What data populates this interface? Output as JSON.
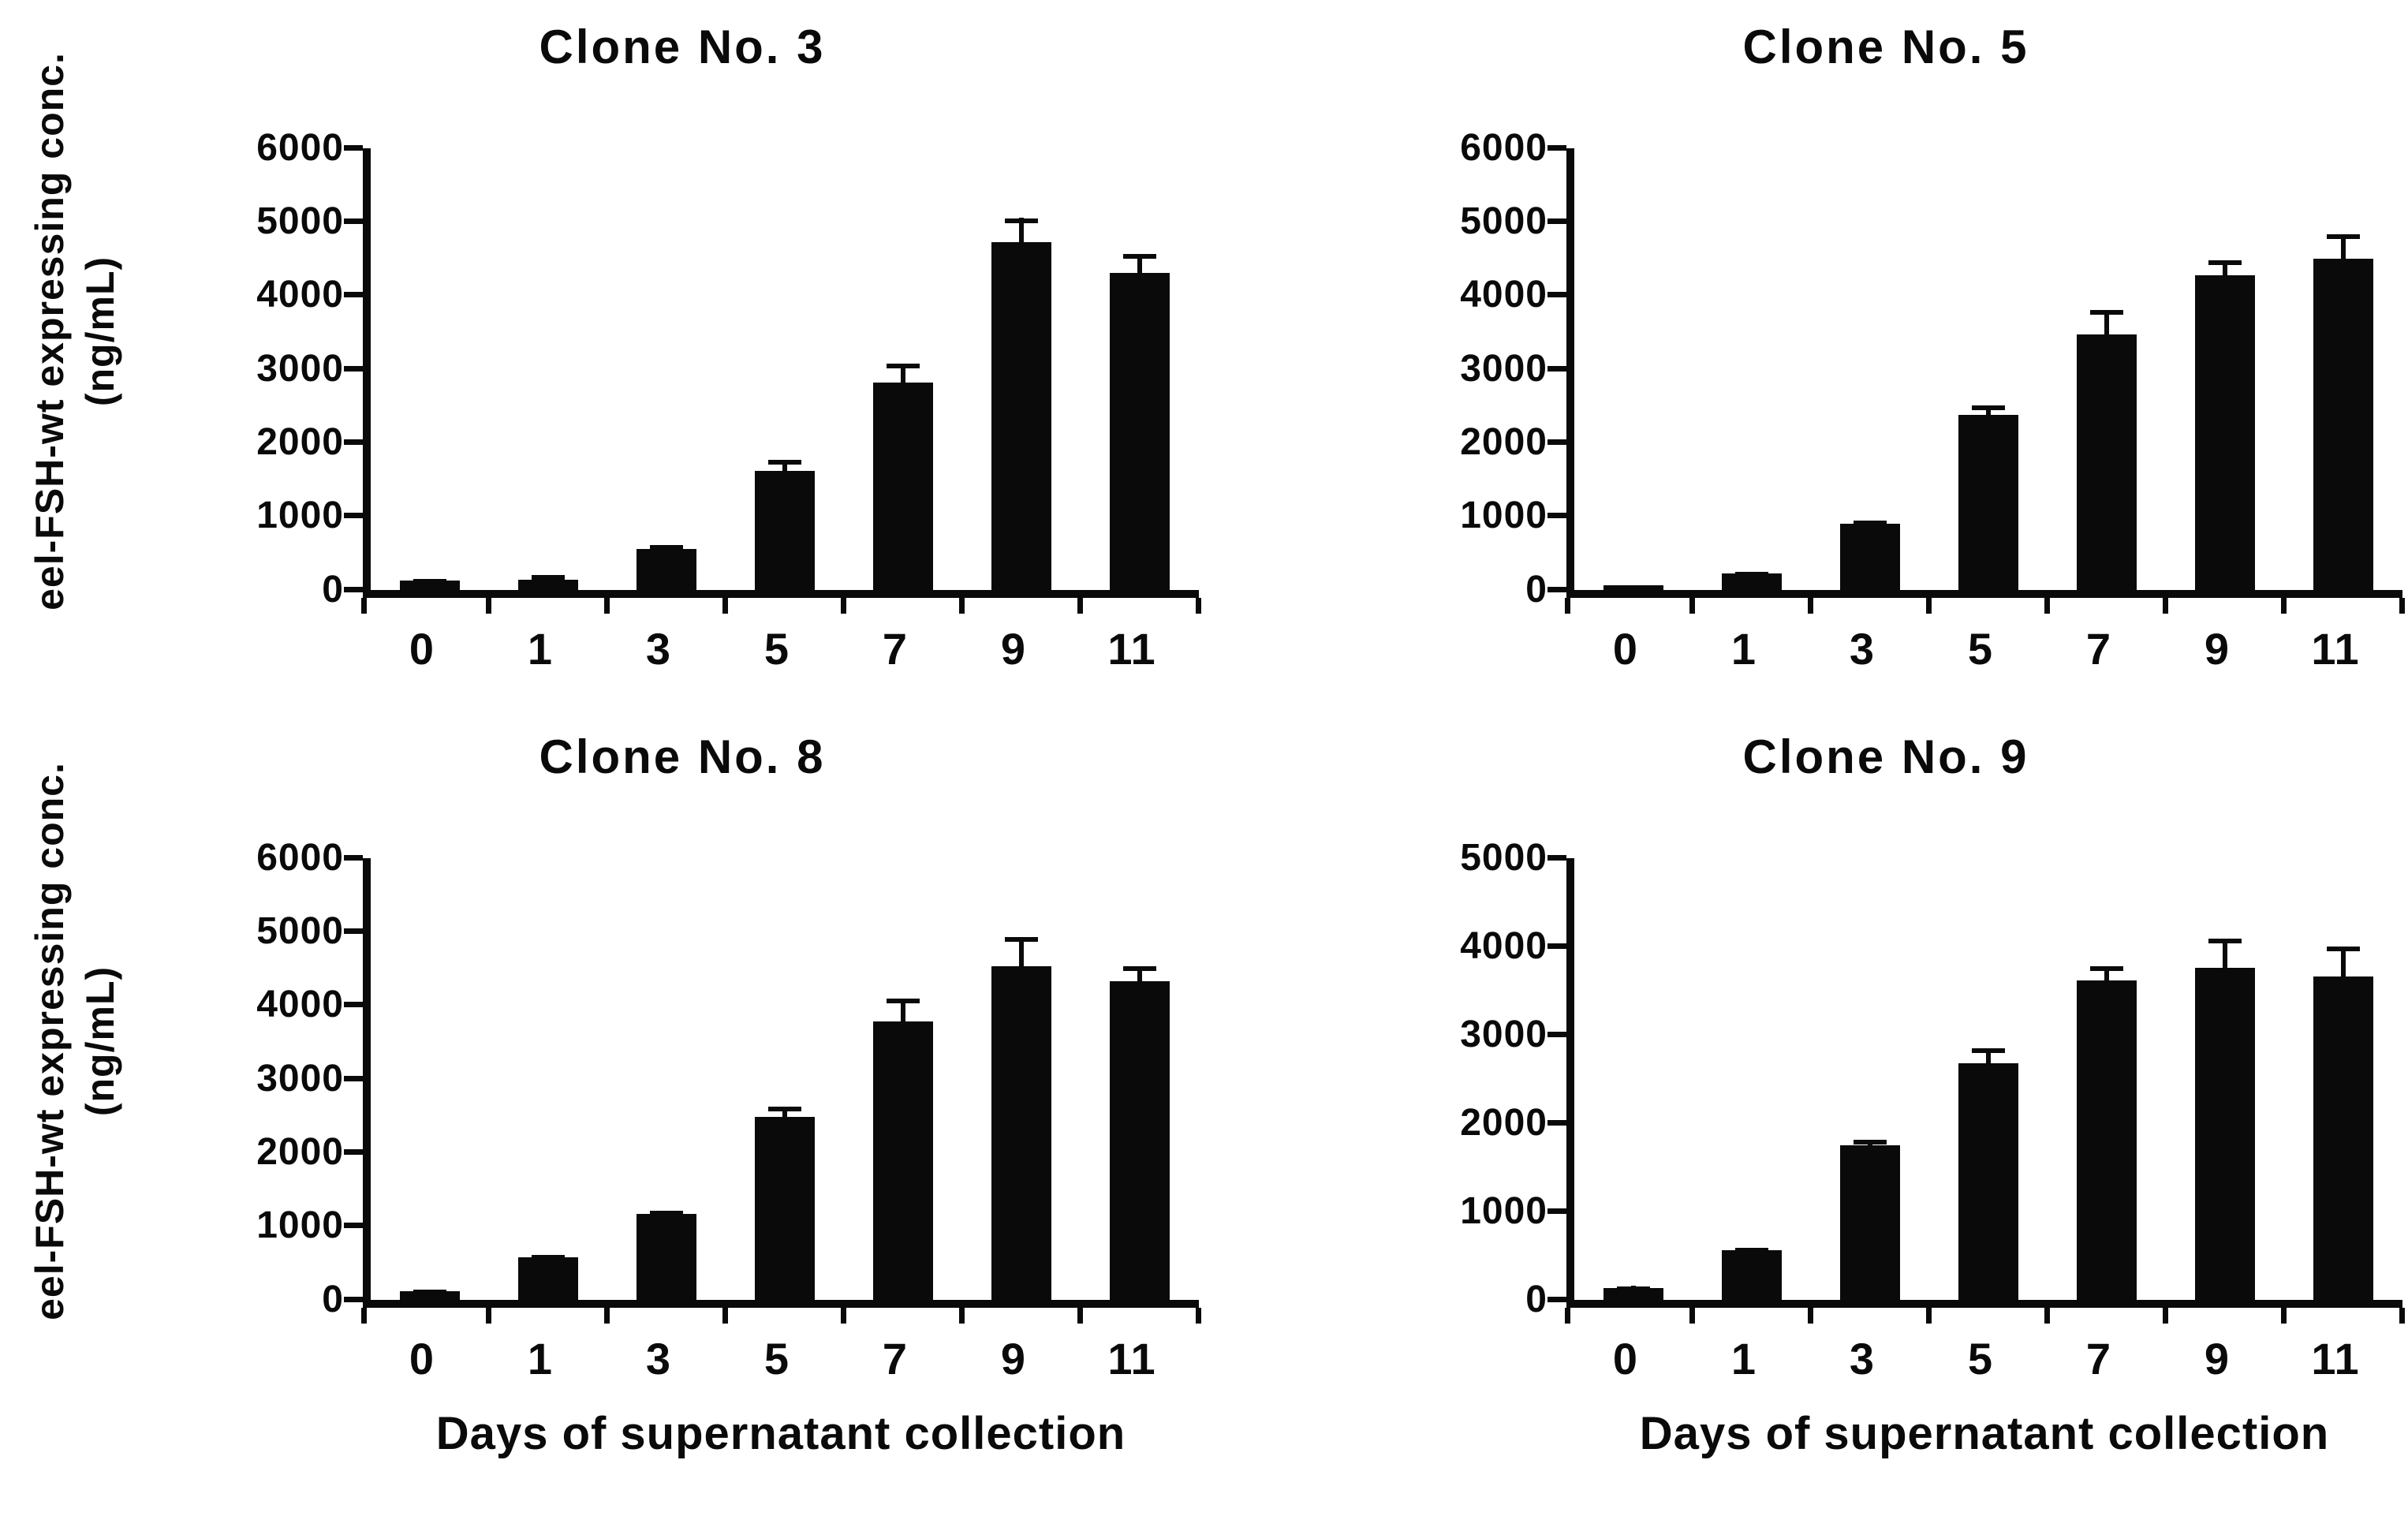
{
  "figure": {
    "background": "#ffffff",
    "ink_color": "#0a0a0a",
    "bar_color": "#0a0a0a",
    "y_axis_label_line1": "eel-FSH-wt expressing conc.",
    "y_axis_label_line2": "(ng/mL)",
    "x_axis_label": "Days of supernatant collection"
  },
  "chart_data": [
    {
      "type": "bar",
      "title": "Clone No. 3",
      "xlabel": "",
      "ylabel": "eel-FSH-wt expressing conc. (ng/mL)",
      "categories": [
        "0",
        "1",
        "3",
        "5",
        "7",
        "9",
        "11"
      ],
      "values": [
        130,
        140,
        560,
        1620,
        2820,
        4720,
        4310
      ],
      "errors": [
        15,
        60,
        50,
        150,
        260,
        330,
        250
      ],
      "ylim": [
        0,
        6000
      ],
      "yticks": [
        "0",
        "1000",
        "2000",
        "3000",
        "4000",
        "5000",
        "6000"
      ],
      "grid": false,
      "legend": "none",
      "show_ylabel": true,
      "show_xlabel": false
    },
    {
      "type": "bar",
      "title": "Clone No. 5",
      "xlabel": "",
      "ylabel": "",
      "categories": [
        "0",
        "1",
        "3",
        "5",
        "7",
        "9",
        "11"
      ],
      "values": [
        60,
        230,
        900,
        2380,
        3470,
        4280,
        4500
      ],
      "errors": [
        10,
        20,
        40,
        130,
        330,
        200,
        330
      ],
      "ylim": [
        0,
        6000
      ],
      "yticks": [
        "0",
        "1000",
        "2000",
        "3000",
        "4000",
        "5000",
        "6000"
      ],
      "grid": false,
      "legend": "none",
      "show_ylabel": false,
      "show_xlabel": false
    },
    {
      "type": "bar",
      "title": "Clone No. 8",
      "xlabel": "Days of supernatant collection",
      "ylabel": "eel-FSH-wt expressing conc. (ng/mL)",
      "categories": [
        "0",
        "1",
        "3",
        "5",
        "7",
        "9",
        "11"
      ],
      "values": [
        120,
        580,
        1170,
        2490,
        3780,
        4530,
        4330
      ],
      "errors": [
        20,
        30,
        40,
        140,
        310,
        400,
        200
      ],
      "ylim": [
        0,
        6000
      ],
      "yticks": [
        "0",
        "1000",
        "2000",
        "3000",
        "4000",
        "5000",
        "6000"
      ],
      "grid": false,
      "legend": "none",
      "show_ylabel": true,
      "show_xlabel": true
    },
    {
      "type": "bar",
      "title": "Clone No. 9",
      "xlabel": "Days of supernatant collection",
      "ylabel": "",
      "categories": [
        "0",
        "1",
        "3",
        "5",
        "7",
        "9",
        "11"
      ],
      "values": [
        130,
        560,
        1750,
        2680,
        3620,
        3760,
        3660
      ],
      "errors": [
        25,
        30,
        60,
        170,
        160,
        330,
        340
      ],
      "ylim": [
        0,
        5000
      ],
      "yticks": [
        "0",
        "1000",
        "2000",
        "3000",
        "4000",
        "5000"
      ],
      "grid": false,
      "legend": "none",
      "show_ylabel": false,
      "show_xlabel": true
    }
  ]
}
